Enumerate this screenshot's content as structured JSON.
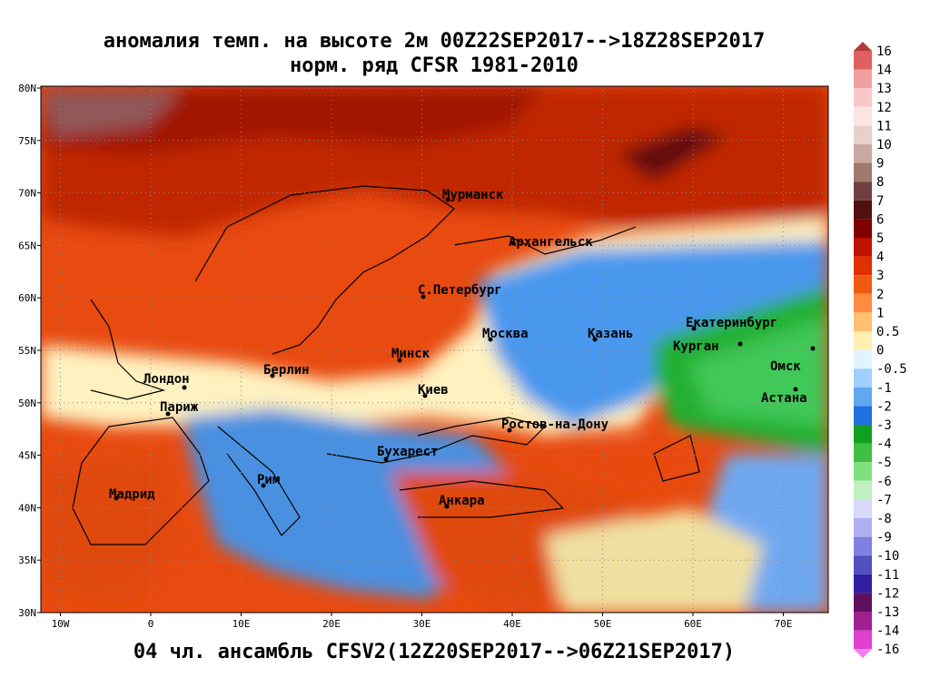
{
  "map": {
    "title": "аномалия темп. на высоте 2м 00Z22SEP2017-->18Z28SEP2017",
    "subtitle": "норм. ряд CFSR 1981-2010",
    "footer": "04 чл. ансамбль CFSV2(12Z20SEP2017-->06Z21SEP2017)",
    "lonticks": [
      {
        "value": -10,
        "label": "10W"
      },
      0,
      {
        "value": 10,
        "label": "10E"
      },
      {
        "value": 20,
        "label": "20E"
      },
      {
        "value": 30,
        "label": "30E"
      },
      {
        "value": 40,
        "label": "40E"
      },
      {
        "value": 50,
        "label": "50E"
      },
      {
        "value": 60,
        "label": "60E"
      },
      {
        "value": 70,
        "label": "70E"
      }
    ],
    "latticks": [
      {
        "value": 30,
        "label": "30N"
      },
      {
        "value": 35,
        "label": "35N"
      },
      {
        "value": 40,
        "label": "40N"
      },
      {
        "value": 45,
        "label": "45N"
      },
      {
        "value": 50,
        "label": "50N"
      },
      {
        "value": 55,
        "label": "55N"
      },
      {
        "value": 60,
        "label": "60N"
      },
      {
        "value": 65,
        "label": "65N"
      },
      {
        "value": 70,
        "label": "70N"
      },
      {
        "value": 75,
        "label": "75N"
      },
      {
        "value": 80,
        "label": "80N"
      }
    ],
    "cities": [
      "Мурманск",
      "Архангельск",
      "С.Петербург",
      "Москва",
      "Казань",
      "Екатеринбург",
      "Курган",
      "Омск",
      "Астана",
      "Минск",
      "Лондон",
      "Париж",
      "Берлин",
      "Киев",
      "Ростов-на-Дону",
      "Бухарест",
      "Рим",
      "Анкара",
      "Мадрид"
    ],
    "colorbar": {
      "levels": [
        16,
        14,
        13,
        12,
        11,
        10,
        9,
        8,
        7,
        6,
        5,
        4,
        3,
        2,
        1,
        0.5,
        0,
        -0.5,
        -1,
        -2,
        -3,
        -4,
        -5,
        -6,
        -7,
        -8,
        -9,
        -10,
        -11,
        -12,
        -13,
        -14,
        -16
      ],
      "colors": [
        "#b03a3a",
        "#e06060",
        "#f0a0a0",
        "#f8c8c8",
        "#fbe4e4",
        "#e8d0c8",
        "#c8a8a0",
        "#a07870",
        "#704040",
        "#501010",
        "#800000",
        "#c01000",
        "#e03000",
        "#f05a10",
        "#ff8a40",
        "#ffc070",
        "#fff0b0",
        "#e0f4ff",
        "#a0d0ff",
        "#60a8f0",
        "#2070e0",
        "#10a020",
        "#40c040",
        "#80e080",
        "#c0f0c0",
        "#d8d8f8",
        "#b0b0f0",
        "#8080e0",
        "#5050c0",
        "#3020a0",
        "#601060",
        "#a02090",
        "#e040d0",
        "#f080f0"
      ]
    }
  }
}
